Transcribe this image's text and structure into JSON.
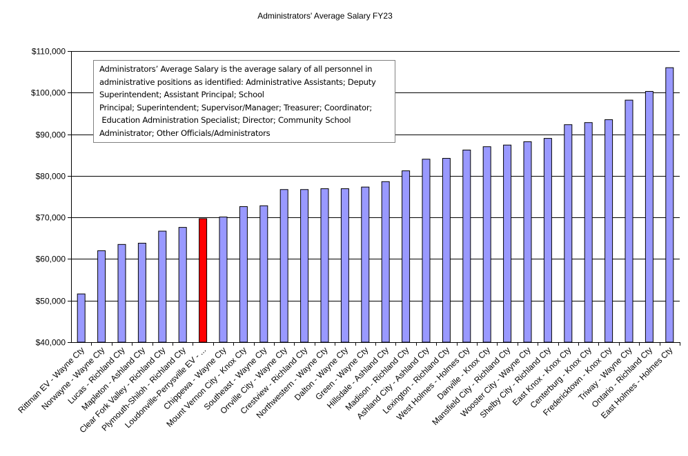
{
  "chart_data": {
    "type": "bar",
    "title": "Administrators' Average  Salary FY23",
    "xlabel": "",
    "ylabel": "",
    "ylim": [
      40000,
      110000
    ],
    "yticks": [
      40000,
      50000,
      60000,
      70000,
      80000,
      90000,
      100000,
      110000
    ],
    "ytick_labels": [
      "$40,000",
      "$50,000",
      "$60,000",
      "$70,000",
      "$80,000",
      "$90,000",
      "$100,000",
      "$110,000"
    ],
    "grid": true,
    "bar_color": "#9999ff",
    "highlight_color": "#ff0000",
    "highlight_index": 6,
    "categories": [
      "Rittman EV - Wayne Cty",
      "Norwayne - Wayne Cty",
      "Lucas  - Richland Cty",
      "Mapleton - Ashland Cty",
      "Clear Fork Valley - Richland Cty",
      "Plymouth-Shiloh - Richland Cty",
      "Loudonville-Perrysville EV - ...",
      "Chippewa - Wayne Cty",
      "Mount Vernon City - Knox Cty",
      "Southeast - Wayne Cty",
      "Orrville City - Wayne Cty",
      "Crestview - Richland Cty",
      "Northwestern - Wayne Cty",
      "Dalton - Wayne Cty",
      "Green - Wayne Cty",
      "Hillsdale - Ashland Cty",
      "Madison - Richland Cty",
      "Ashland City - Ashland Cty",
      "Lexington - Richland Cty",
      "West Holmes - Holmes Cty",
      "Danville - Knox Cty",
      "Mansfield City - Richland Cty",
      "Wooster City - Wayne Cty",
      "Shelby City - Richland Cty",
      "East Knox - Knox Cty",
      "Centerburg - Knox Cty",
      "Fredericktown - Knox Cty",
      "Triway - Wayne Cty",
      "Ontario - Richland Cty",
      "East Holmes - Holmes Cty"
    ],
    "values": [
      51600,
      62000,
      63500,
      63800,
      66700,
      67600,
      69700,
      70100,
      72600,
      72800,
      76700,
      76700,
      76900,
      76900,
      77300,
      78600,
      81200,
      84000,
      84200,
      86200,
      87000,
      87400,
      88200,
      89000,
      92300,
      92800,
      93500,
      98200,
      100300,
      106000
    ],
    "annotation": [
      "Administrators’ Average Salary is the average salary of all personnel in",
      "administrative positions as identified: Administrative Assistants; Deputy",
      "Superintendent; Assistant Principal; School",
      "Principal; Superintendent; Supervisor/Manager; Treasurer; Coordinator;",
      " Education Administration Specialist; Director; Community School",
      "Administrator; Other Officials/Administrators"
    ]
  }
}
